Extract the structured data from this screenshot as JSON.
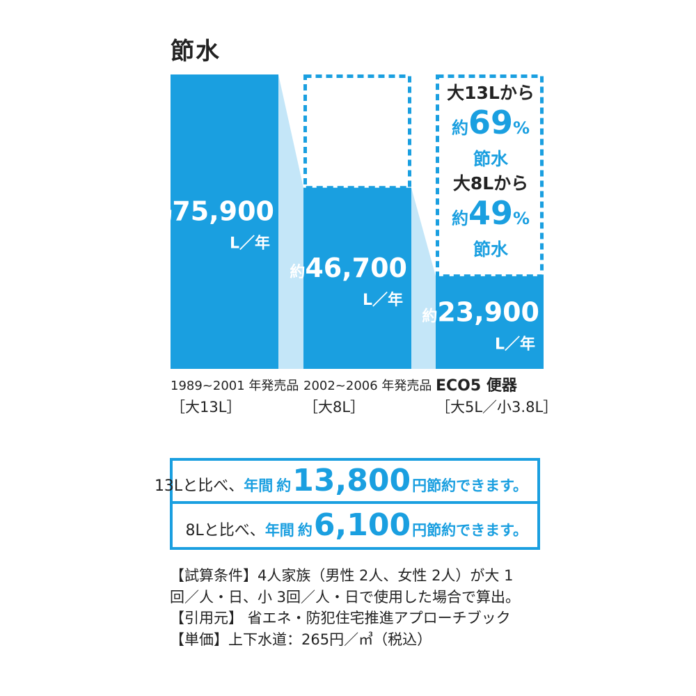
{
  "title": "節水",
  "chart_data": {
    "type": "bar",
    "unit": "L／年",
    "value_prefix": "約",
    "categories": [
      {
        "line1": "1989~2001 年発売品",
        "line2": "［大13L］"
      },
      {
        "line1": "2002~2006 年発売品",
        "line2": "［大8L］"
      },
      {
        "line1": "ECO5 便器",
        "line2": "［大5L／小3.8L］"
      }
    ],
    "values": [
      75900,
      46700,
      23900
    ],
    "value_labels": [
      "75,900",
      "46,700",
      "23,900"
    ],
    "reference_outline": "dashed outline at the first bar's value (75,900) for the 2nd and 3rd bars",
    "savings": [
      {
        "from": "大13Lから",
        "prefix": "約",
        "percent": "69",
        "unit": "%",
        "label": "節水"
      },
      {
        "from": "大8Lから",
        "prefix": "約",
        "percent": "49",
        "unit": "%",
        "label": "節水"
      }
    ],
    "colors": {
      "bar": "#1a9fe0",
      "connector": "#c4e6f8",
      "accent": "#1a9fe0",
      "text": "#222222"
    }
  },
  "summary": [
    {
      "lead": "13Lと比べ、",
      "annual": "年間",
      "approx": "約",
      "amount": "13,800",
      "tail": "円節約できます。"
    },
    {
      "lead": "8Lと比べ、",
      "annual": "年間",
      "approx": "約",
      "amount": "6,100",
      "tail": "円節約できます。"
    }
  ],
  "notes": [
    "【試算条件】4人家族（男性 2人、女性 2人）が大 1",
    "回／人・日、小 3回／人・日で使用した場合で算出。",
    "【引用元】 省エネ・防犯住宅推進アプローチブック",
    "【単価】上下水道：265円／㎥（税込）"
  ]
}
